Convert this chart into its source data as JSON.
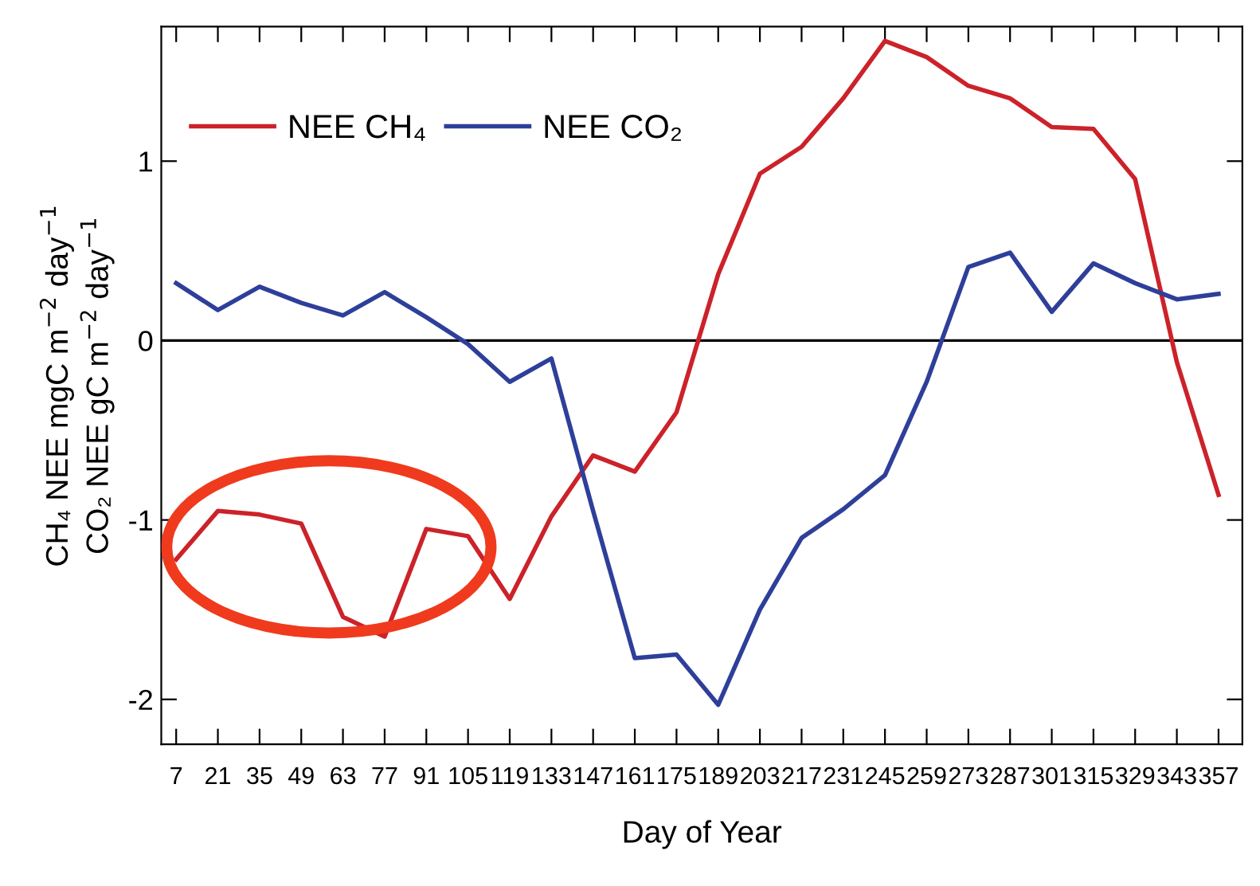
{
  "chart_data": {
    "type": "line",
    "xlabel": "Day of Year",
    "ylabel": "CH₄ NEE mgC m$^{−2}$ day$^{−1}$\nCO₂ NEE gC m$^{−2}$ day$^{−1}$",
    "x": [
      7,
      21,
      35,
      49,
      63,
      77,
      91,
      105,
      119,
      133,
      147,
      161,
      175,
      189,
      203,
      217,
      231,
      245,
      259,
      273,
      287,
      301,
      315,
      329,
      343,
      357
    ],
    "series": [
      {
        "name": "NEE CH₄",
        "color": "#cc2229",
        "values": [
          -1.22,
          -0.95,
          -0.97,
          -1.02,
          -1.54,
          -1.65,
          -1.05,
          -1.09,
          -1.44,
          -0.98,
          -0.64,
          -0.73,
          -0.4,
          0.37,
          0.93,
          1.08,
          1.35,
          1.67,
          1.58,
          1.42,
          1.35,
          1.19,
          1.18,
          0.9,
          -0.12,
          -0.86
        ]
      },
      {
        "name": "NEE CO₂",
        "color": "#2e3f9a",
        "values": [
          0.32,
          0.17,
          0.3,
          0.21,
          0.14,
          0.27,
          0.13,
          -0.02,
          -0.23,
          -0.1,
          -0.95,
          -1.77,
          -1.75,
          -2.03,
          -1.5,
          -1.1,
          -0.94,
          -0.75,
          -0.23,
          0.41,
          0.49,
          0.16,
          0.43,
          0.32,
          0.23,
          0.26
        ]
      }
    ],
    "xlim": [
      2,
      365
    ],
    "xticks": [
      7,
      21,
      35,
      49,
      63,
      77,
      91,
      105,
      119,
      133,
      147,
      161,
      175,
      189,
      203,
      217,
      231,
      245,
      259,
      273,
      287,
      301,
      315,
      329,
      343,
      357
    ],
    "ylim": [
      -2.25,
      1.75
    ],
    "yticks": [
      -2,
      -1,
      0,
      1
    ],
    "ref_lines": [
      {
        "axis": "y",
        "value": 0,
        "color": "#000000"
      }
    ],
    "legend": "top left",
    "grid": false,
    "marker": "none",
    "line_style": "solid"
  }
}
